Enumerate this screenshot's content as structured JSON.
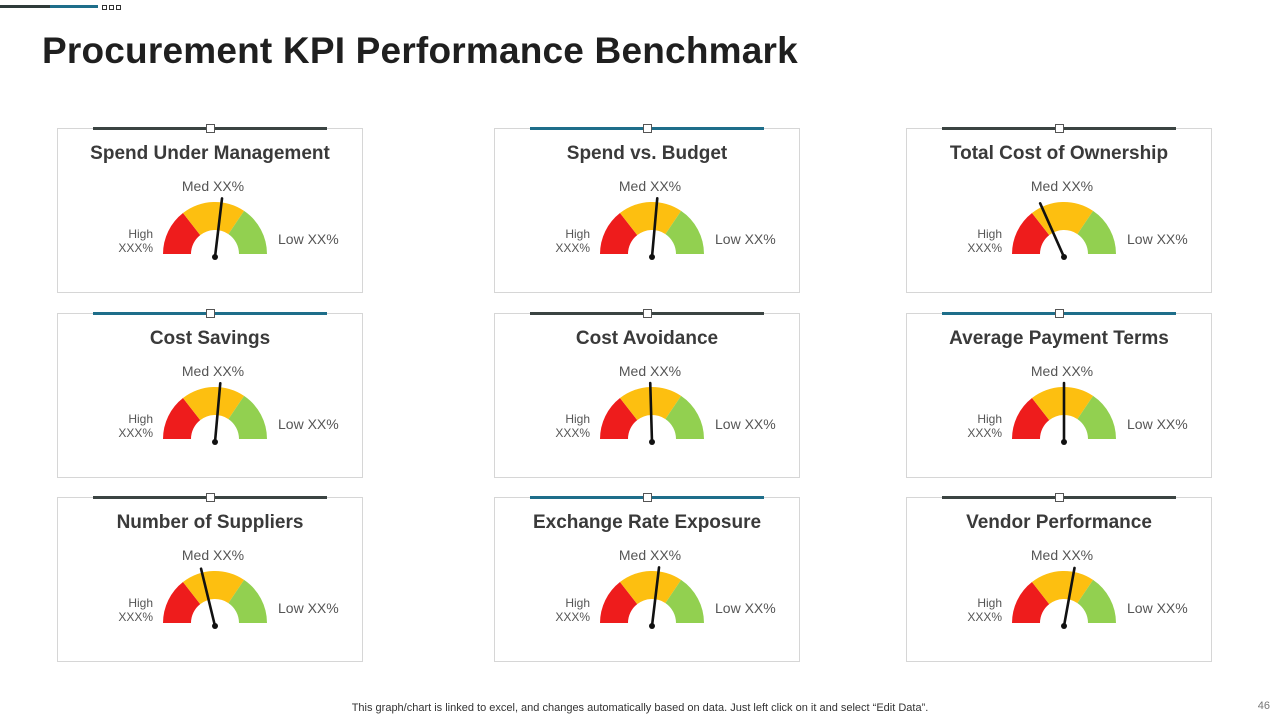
{
  "page": {
    "title": "Procurement KPI Performance Benchmark",
    "footer_note": "This graph/chart is linked to excel,  and changes automatically based on data. Just left click on it and select “Edit Data”.",
    "page_number": "46"
  },
  "colors": {
    "red": "#ee1c1c",
    "amber": "#fdbf10",
    "green": "#92d050",
    "teal_accent": "#1e6e8a",
    "dark_accent": "#3b4442",
    "needle": "#111111"
  },
  "chart_data": {
    "type": "gauge",
    "scale": [
      "High",
      "Med",
      "Low"
    ],
    "gauges": [
      {
        "title": "Spend Under Management",
        "accent": "dark",
        "high_label": "High",
        "high_value": "XXX%",
        "med_label": "Med XX%",
        "low_label": "Low XX%",
        "needle_fraction": 0.54
      },
      {
        "title": "Spend vs. Budget",
        "accent": "teal",
        "high_label": "High",
        "high_value": "XXX%",
        "med_label": "Med XX%",
        "low_label": "Low XX%",
        "needle_fraction": 0.53
      },
      {
        "title": "Total Cost of Ownership",
        "accent": "dark",
        "high_label": "High",
        "high_value": "XXX%",
        "med_label": "Med XX%",
        "low_label": "Low XX%",
        "needle_fraction": 0.36
      },
      {
        "title": "Cost Savings",
        "accent": "teal",
        "high_label": "High",
        "high_value": "XXX%",
        "med_label": "Med XX%",
        "low_label": "Low XX%",
        "needle_fraction": 0.53
      },
      {
        "title": "Cost Avoidance",
        "accent": "dark",
        "high_label": "High",
        "high_value": "XXX%",
        "med_label": "Med XX%",
        "low_label": "Low XX%",
        "needle_fraction": 0.49
      },
      {
        "title": "Average Payment Terms",
        "accent": "teal",
        "high_label": "High",
        "high_value": "XXX%",
        "med_label": "Med XX%",
        "low_label": "Low XX%",
        "needle_fraction": 0.5
      },
      {
        "title": "Number of Suppliers",
        "accent": "dark",
        "high_label": "High",
        "high_value": "XXX%",
        "med_label": "Med XX%",
        "low_label": "Low XX%",
        "needle_fraction": 0.42
      },
      {
        "title": "Exchange Rate Exposure",
        "accent": "teal",
        "high_label": "High",
        "high_value": "XXX%",
        "med_label": "Med XX%",
        "low_label": "Low XX%",
        "needle_fraction": 0.54
      },
      {
        "title": "Vendor Performance",
        "accent": "dark",
        "high_label": "High",
        "high_value": "XXX%",
        "med_label": "Med XX%",
        "low_label": "Low XX%",
        "needle_fraction": 0.56
      }
    ]
  }
}
